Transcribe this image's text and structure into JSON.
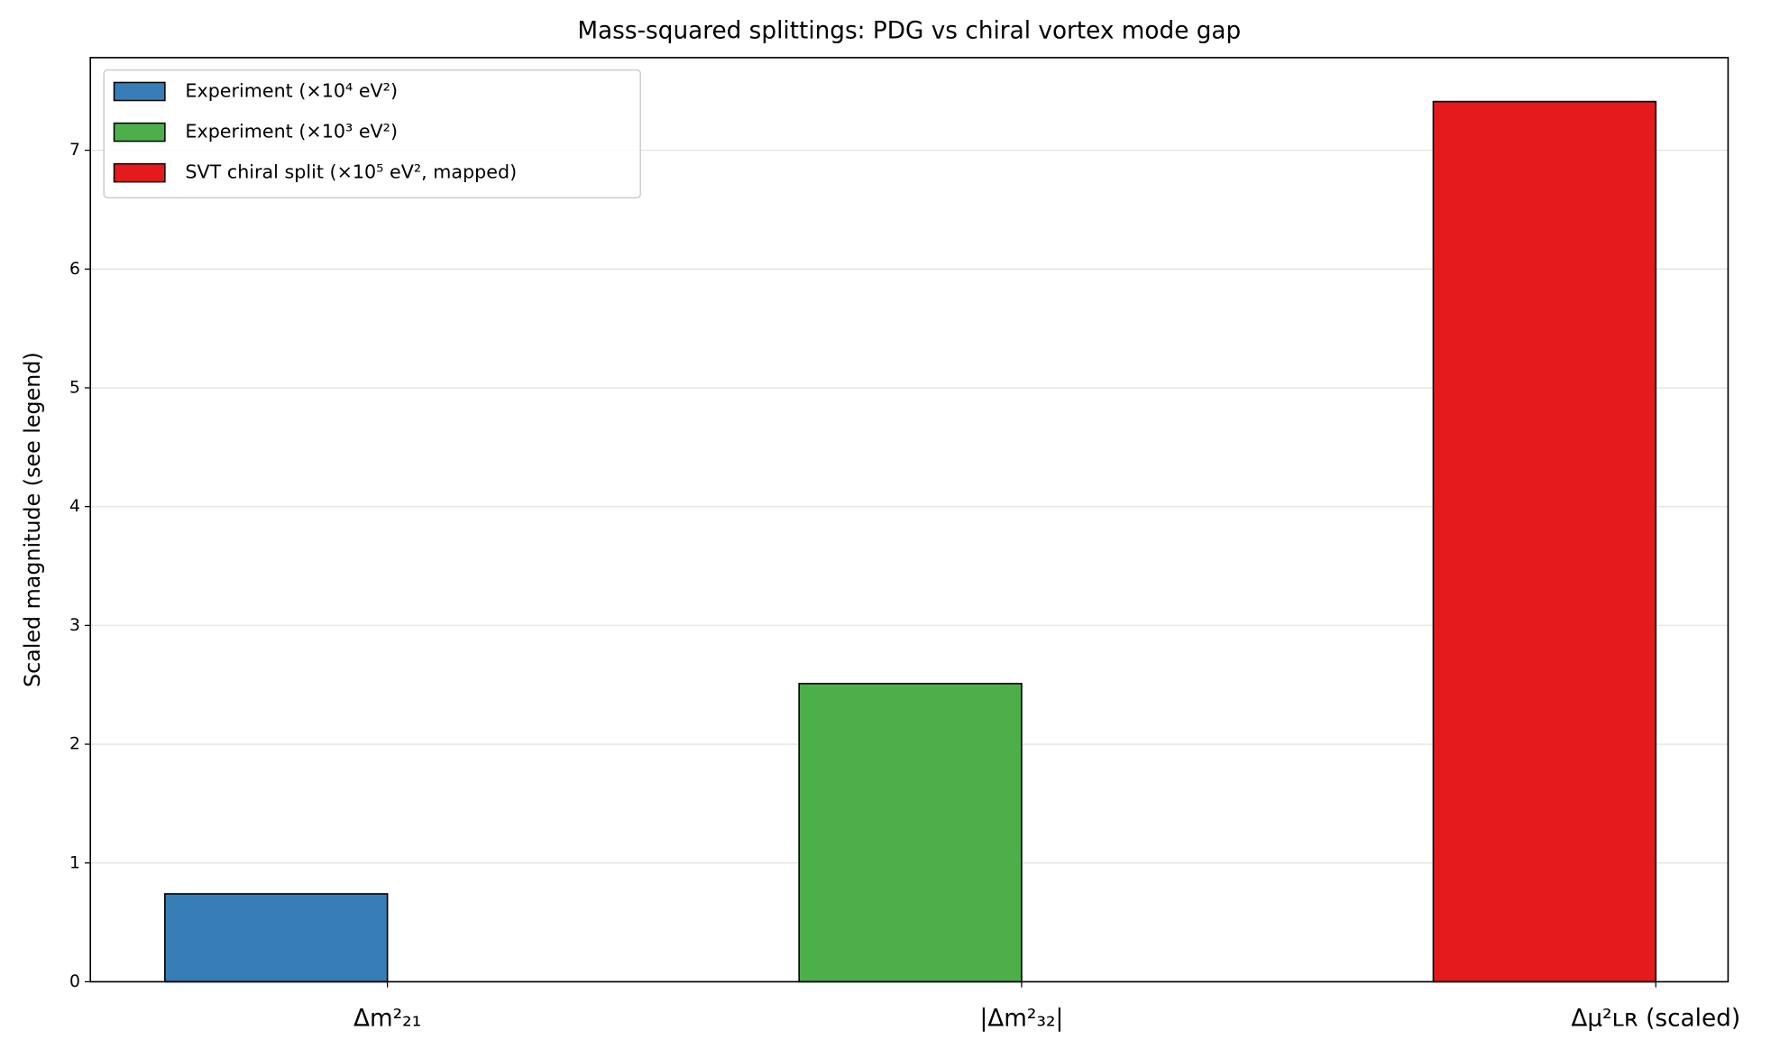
{
  "chart_data": {
    "type": "bar",
    "title": "Mass-squared splittings:  PDG vs chiral vortex mode gap",
    "ylabel": "Scaled magnitude  (see legend)",
    "categories": [
      "Δm²₂₁",
      "|Δm²₃₂|",
      "Δμ²ʟʀ (scaled)"
    ],
    "series": [
      {
        "name": "Experiment (×10⁴ eV²)",
        "color": "#377eb8",
        "values": [
          0.74,
          null,
          null
        ]
      },
      {
        "name": "Experiment (×10³ eV²)",
        "color": "#4daf4a",
        "values": [
          null,
          2.51,
          null
        ]
      },
      {
        "name": "SVT chiral split (×10⁵ eV², mapped)",
        "color": "#e41a1c",
        "values": [
          null,
          null,
          7.41
        ]
      }
    ],
    "ylim": [
      0,
      7.78
    ],
    "yticks": [
      0,
      1,
      2,
      3,
      4,
      5,
      6,
      7
    ],
    "grid": true,
    "legend": "upper left"
  }
}
